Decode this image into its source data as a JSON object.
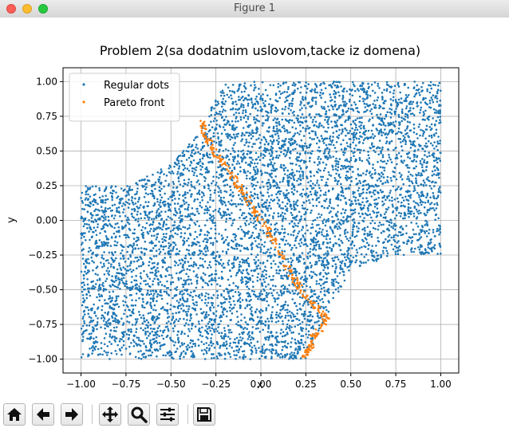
{
  "window": {
    "title": "Figure 1"
  },
  "chart_data": {
    "type": "scatter",
    "title": "Problem 2(sa dodatnim uslovom,tacke iz domena)",
    "xlabel": "x",
    "ylabel": "y",
    "xlim": [
      -1.1,
      1.1
    ],
    "ylim": [
      -1.1,
      1.1
    ],
    "xticks": [
      "−1.00",
      "−0.75",
      "−0.50",
      "−0.25",
      "0.00",
      "0.25",
      "0.50",
      "0.75",
      "1.00"
    ],
    "yticks": [
      "−1.00",
      "−0.75",
      "−0.50",
      "−0.25",
      "0.00",
      "0.25",
      "0.50",
      "0.75",
      "1.00"
    ],
    "grid": true,
    "legend_position": "upper-left",
    "series": [
      {
        "name": "Regular dots",
        "color": "#1f77b4",
        "region": {
          "upper_boundary": [
            [
              -1.0,
              0.25
            ],
            [
              -0.75,
              0.25
            ],
            [
              -0.5,
              0.4
            ],
            [
              -0.35,
              0.62
            ],
            [
              -0.25,
              0.88
            ],
            [
              -0.2,
              1.0
            ],
            [
              1.0,
              1.0
            ]
          ],
          "lower_boundary": [
            [
              -1.0,
              -1.0
            ],
            [
              0.25,
              -1.0
            ],
            [
              0.3,
              -0.85
            ],
            [
              0.5,
              -0.35
            ],
            [
              0.75,
              -0.25
            ],
            [
              1.0,
              -0.25
            ]
          ]
        },
        "approx_count": 6500
      },
      {
        "name": "Pareto front",
        "color": "#ff7f0e",
        "points": [
          [
            -0.33,
            0.72
          ],
          [
            -0.31,
            0.62
          ],
          [
            -0.28,
            0.55
          ],
          [
            -0.25,
            0.47
          ],
          [
            -0.2,
            0.4
          ],
          [
            -0.15,
            0.3
          ],
          [
            -0.1,
            0.2
          ],
          [
            -0.05,
            0.1
          ],
          [
            0.0,
            0.0
          ],
          [
            0.05,
            -0.1
          ],
          [
            0.1,
            -0.22
          ],
          [
            0.15,
            -0.35
          ],
          [
            0.2,
            -0.45
          ],
          [
            0.25,
            -0.55
          ],
          [
            0.3,
            -0.62
          ],
          [
            0.35,
            -0.68
          ],
          [
            0.37,
            -0.73
          ],
          [
            0.3,
            -0.82
          ],
          [
            0.28,
            -0.9
          ],
          [
            0.25,
            -0.95
          ],
          [
            0.24,
            -0.99
          ]
        ],
        "approx_count": 320
      }
    ]
  },
  "toolbar": {
    "buttons": [
      {
        "name": "home-button",
        "icon": "home-icon"
      },
      {
        "name": "back-button",
        "icon": "arrow-left-icon"
      },
      {
        "name": "forward-button",
        "icon": "arrow-right-icon"
      },
      {
        "name": "pan-button",
        "icon": "move-icon"
      },
      {
        "name": "zoom-button",
        "icon": "magnifier-icon"
      },
      {
        "name": "subplots-button",
        "icon": "sliders-icon"
      },
      {
        "name": "save-button",
        "icon": "floppy-disk-icon"
      }
    ]
  }
}
